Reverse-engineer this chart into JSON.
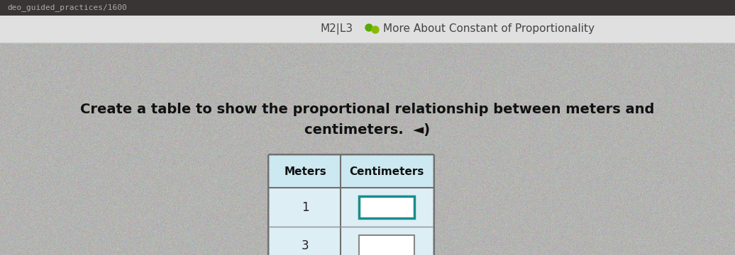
{
  "browser_bar_color": "#3a3535",
  "browser_bar_text": "deo_guided_practices/1600",
  "browser_bar_text_color": "#aaaaaa",
  "header_bar_color": "#e8e8e8",
  "header_text_left": "M2|L3",
  "header_text_right": "  More About Constant of Proportionality",
  "header_text_color": "#555555",
  "header_icon_color": "#6aaa00",
  "bg_color": "#b0b0b0",
  "question_line1": "Create a table to show the proportional relationship between meters and",
  "question_line2": "centimeters.  ◄︎)",
  "question_color": "#111111",
  "question_fontsize": 14,
  "col_headers": [
    "Meters",
    "Centimeters"
  ],
  "row_values": [
    "1",
    "3"
  ],
  "table_header_bg": "#cce8f0",
  "table_data_bg": "#ddeef5",
  "table_border_color": "#707070",
  "table_divider_color": "#909090",
  "input_box_active_color": "#1a8c8c",
  "input_box_inactive_color": "#888888",
  "input_box_bg": "#ffffff"
}
